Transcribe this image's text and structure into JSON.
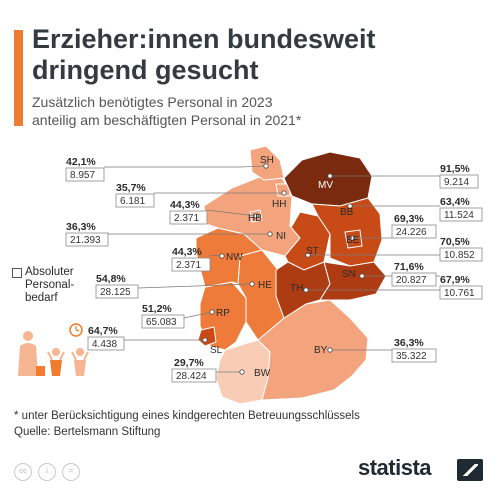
{
  "header": {
    "title": "Erzieher:innen bundesweit dringend gesucht",
    "subtitle_line1": "Zusätzlich benötigtes Personal in 2023",
    "subtitle_line2": "anteilig am beschäftigten Personal in 2021*"
  },
  "legend": {
    "label": "Absoluter Personal-bedarf"
  },
  "colors": {
    "accent": "#f07d2f",
    "darkest": "#7a2a0e",
    "dark": "#c74a17",
    "medium": "#ee7b3a",
    "light": "#f4a47d",
    "lightest": "#f9cdb5"
  },
  "states": [
    {
      "code": "SH",
      "share": "42,1%",
      "count": "8.957"
    },
    {
      "code": "MV",
      "share": "91,5%",
      "count": "9.214"
    },
    {
      "code": "HH",
      "share": "35,7%",
      "count": "6.181"
    },
    {
      "code": "HB",
      "share": "44,3%",
      "count": "2.371"
    },
    {
      "code": "BB",
      "share": "63,4%",
      "count": "11.524"
    },
    {
      "code": "NI",
      "share": "36,3%",
      "count": "21.393"
    },
    {
      "code": "BE",
      "share": "69,3%",
      "count": "24.226"
    },
    {
      "code": "ST",
      "share": "70,5%",
      "count": "10.852"
    },
    {
      "code": "NW",
      "share": "44,3%",
      "count": "2.371"
    },
    {
      "code": "SN",
      "share": "71,6%",
      "count": "20.827"
    },
    {
      "code": "HE",
      "share": "54,8%",
      "count": "28.125"
    },
    {
      "code": "TH",
      "share": "67,9%",
      "count": "10.761"
    },
    {
      "code": "RP",
      "share": "51,2%",
      "count": "65.083"
    },
    {
      "code": "SL",
      "share": "64,7%",
      "count": "4.438"
    },
    {
      "code": "BY",
      "share": "36,3%",
      "count": "35.322"
    },
    {
      "code": "BW",
      "share": "29,7%",
      "count": "28.424"
    }
  ],
  "footer": {
    "footnote": "* unter Berücksichtigung eines kindgerechten Betreuungsschlüssels",
    "source": "Quelle: Bertelsmann Stiftung",
    "brand": "statista",
    "icons": [
      "cc-icon",
      "by-icon",
      "nd-icon"
    ]
  }
}
